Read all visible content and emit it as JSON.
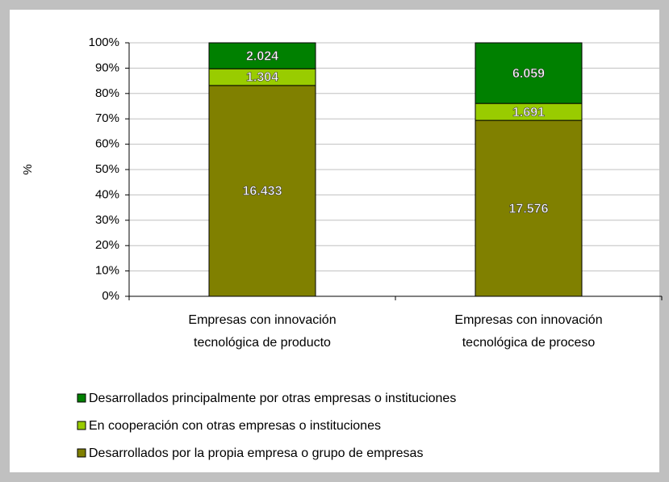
{
  "chart_data": {
    "type": "bar",
    "stacked": "percent",
    "y_label": "%",
    "categories": [
      "Empresas con innovación tecnológica de producto",
      "Empresas con innovación tecnológica de proceso"
    ],
    "series": [
      {
        "name": "Desarrollados por la propia empresa o grupo de empresas",
        "color": "#808000",
        "values": [
          16433,
          17576
        ],
        "value_labels": [
          "16.433",
          "17.576"
        ]
      },
      {
        "name": "En cooperación con otras empresas o instituciones",
        "color": "#99cc00",
        "values": [
          1304,
          1691
        ],
        "value_labels": [
          "1.304",
          "1.691"
        ]
      },
      {
        "name": "Desarrollados principalmente por otras empresas o instituciones",
        "color": "#008000",
        "values": [
          2024,
          6059
        ],
        "value_labels": [
          "2.024",
          "6.059"
        ]
      }
    ],
    "ylim": [
      0,
      100
    ],
    "yticks": [
      {
        "value": 0,
        "label": "0%"
      },
      {
        "value": 10,
        "label": "10%"
      },
      {
        "value": 20,
        "label": "20%"
      },
      {
        "value": 30,
        "label": "30%"
      },
      {
        "value": 40,
        "label": "40%"
      },
      {
        "value": 50,
        "label": "50%"
      },
      {
        "value": 60,
        "label": "60%"
      },
      {
        "value": 70,
        "label": "70%"
      },
      {
        "value": 80,
        "label": "80%"
      },
      {
        "value": 90,
        "label": "90%"
      },
      {
        "value": 100,
        "label": "100%"
      }
    ],
    "grid": true
  }
}
